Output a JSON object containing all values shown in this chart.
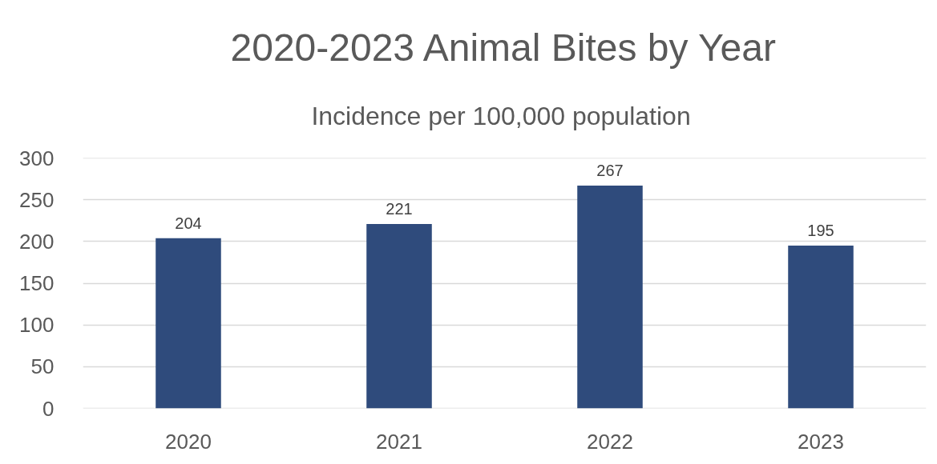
{
  "chart_data": {
    "type": "bar",
    "title": "2020-2023 Animal Bites by Year",
    "subtitle": "Incidence per 100,000  population",
    "categories": [
      "2020",
      "2021",
      "2022",
      "2023"
    ],
    "values": [
      204,
      221,
      267,
      195
    ],
    "color": "#2f4b7c",
    "ylim": [
      0,
      300
    ],
    "yticks": [
      0,
      50,
      100,
      150,
      200,
      250,
      300
    ],
    "grid": "y",
    "data_labels": true
  }
}
